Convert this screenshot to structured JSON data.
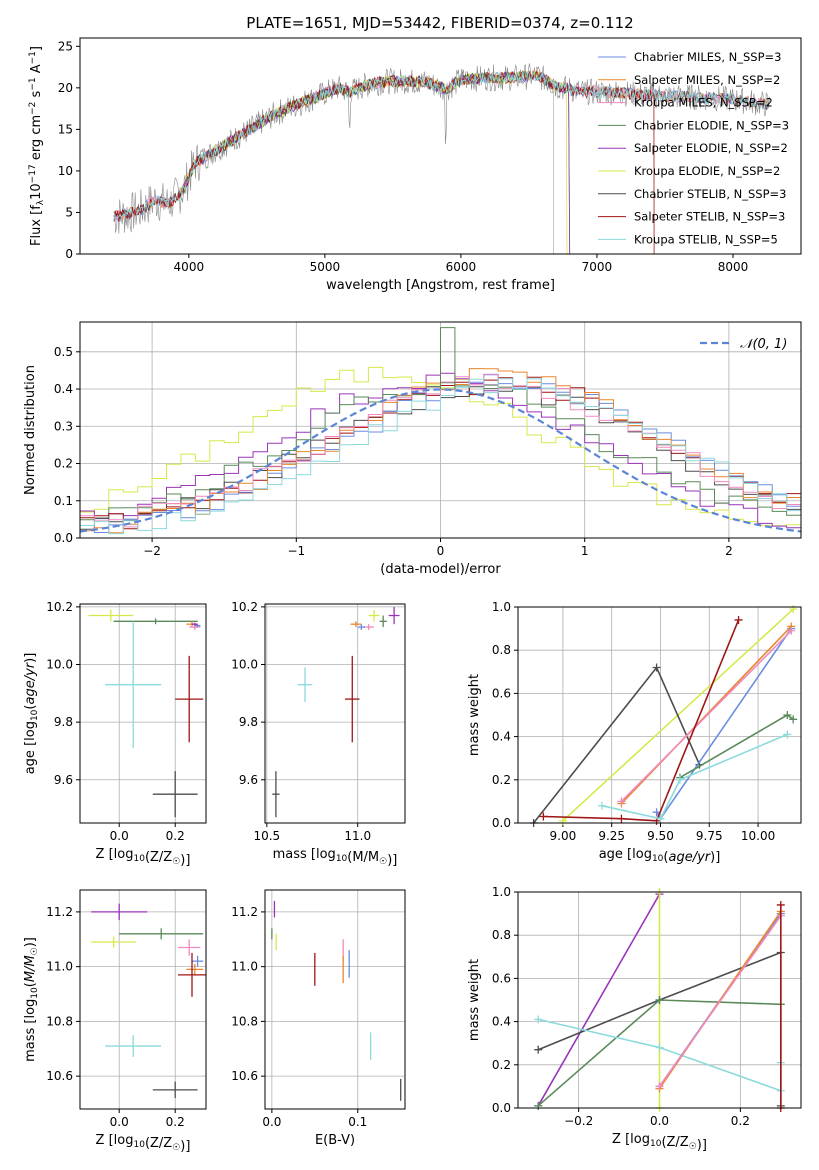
{
  "title": "PLATE=1651, MJD=53442, FIBERID=0374, z=0.112",
  "colors": {
    "Chabrier MILES": "#6b8ce0",
    "Salpeter MILES": "#e8872e",
    "Kroupa MILES": "#f08ac0",
    "Chabrier ELODIE": "#5a8a5a",
    "Salpeter ELODIE": "#9a35b8",
    "Kroupa ELODIE": "#d7e84a",
    "Chabrier STELIB": "#4d4d4d",
    "Salpeter STELIB": "#a01515",
    "Kroupa STELIB": "#8cdadc"
  },
  "chart_data": [
    {
      "id": "spectrum",
      "type": "line",
      "title": "PLATE=1651, MJD=53442, FIBERID=0374, z=0.112",
      "xlabel": "wavelength [Angstrom, rest frame]",
      "ylabel": "Flux [f_λ10^-17 erg cm^-2 s^-1 A^-1]",
      "xlim": [
        3200,
        8500
      ],
      "ylim": [
        0,
        26
      ],
      "xticks": [
        "4000",
        "5000",
        "6000",
        "7000",
        "8000"
      ],
      "yticks": [
        "0",
        "5",
        "10",
        "15",
        "20",
        "25"
      ],
      "grid": false,
      "legend_position": "top-right",
      "legend": [
        "Chabrier MILES, N_SSP=3",
        "Salpeter MILES, N_SSP=2",
        "Kroupa MILES, N_SSP=2",
        "Chabrier ELODIE, N_SSP=3",
        "Salpeter ELODIE, N_SSP=2",
        "Kroupa ELODIE, N_SSP=2",
        "Chabrier STELIB, N_SSP=3",
        "Salpeter STELIB, N_SSP=3",
        "Kroupa STELIB, N_SSP=5"
      ],
      "legend_models": [
        "Chabrier MILES",
        "Salpeter MILES",
        "Kroupa MILES",
        "Chabrier ELODIE",
        "Salpeter ELODIE",
        "Kroupa ELODIE",
        "Chabrier STELIB",
        "Salpeter STELIB",
        "Kroupa STELIB"
      ],
      "data_x": [
        3450,
        3550,
        3650,
        3750,
        3850,
        3950,
        4050,
        4200,
        4350,
        4500,
        4650,
        4800,
        4950,
        5100,
        5180,
        5300,
        5450,
        5600,
        5750,
        5890,
        6000,
        6200,
        6400,
        6563,
        6700,
        6900,
        7100,
        7300,
        7500,
        7700,
        7900,
        8100,
        8250
      ],
      "data_y": [
        4.5,
        4.8,
        5.3,
        6.5,
        6.0,
        7.5,
        11.0,
        12.5,
        14.0,
        15.5,
        17.0,
        18.0,
        19.0,
        20.0,
        19.5,
        20.3,
        20.8,
        20.8,
        20.7,
        19.8,
        21.0,
        21.2,
        21.2,
        21.5,
        20.2,
        19.5,
        19.5,
        19.2,
        19.0,
        18.9,
        18.7,
        18.4,
        18.0
      ]
    },
    {
      "id": "residuals",
      "type": "histogram",
      "xlabel": "(data-model)/error",
      "ylabel": "Normed distribution",
      "xlim": [
        -2.5,
        2.5
      ],
      "ylim": [
        0,
        0.58
      ],
      "xticks": [
        "−2",
        "−1",
        "0",
        "1",
        "2"
      ],
      "yticks": [
        "0.0",
        "0.1",
        "0.2",
        "0.3",
        "0.4",
        "0.5"
      ],
      "grid": true,
      "legend_position": "top-right",
      "legend_label": "𝒩(0, 1)",
      "bin_width": 0.1,
      "bin_start": -2.5,
      "series": [
        {
          "name": "Kroupa ELODIE",
          "shift": -0.35,
          "amp": 0.43,
          "sigma": 0.95
        },
        {
          "name": "Salpeter ELODIE",
          "shift": -0.05,
          "amp": 0.41,
          "sigma": 0.95
        },
        {
          "name": "Chabrier ELODIE",
          "shift": 0.05,
          "amp": 0.4,
          "sigma": 0.95
        },
        {
          "name": "Chabrier STELIB",
          "shift": 0.35,
          "amp": 0.39,
          "sigma": 1.0
        },
        {
          "name": "Salpeter STELIB",
          "shift": 0.45,
          "amp": 0.4,
          "sigma": 1.0
        },
        {
          "name": "Chabrier MILES",
          "shift": 0.45,
          "amp": 0.41,
          "sigma": 0.95
        },
        {
          "name": "Salpeter MILES",
          "shift": 0.4,
          "amp": 0.42,
          "sigma": 0.95
        },
        {
          "name": "Kroupa MILES",
          "shift": 0.35,
          "amp": 0.4,
          "sigma": 1.0
        },
        {
          "name": "Kroupa STELIB",
          "shift": 0.5,
          "amp": 0.4,
          "sigma": 0.95
        }
      ],
      "spike": {
        "x": 0.05,
        "y": 0.565
      }
    },
    {
      "id": "age-vs-Z",
      "type": "errorbar",
      "xlabel": "Z [log10(Z/Z☉)]",
      "ylabel": "age [log10(age/yr)]",
      "xlim": [
        -0.14,
        0.31
      ],
      "ylim": [
        9.45,
        10.21
      ],
      "xticks": [
        "0.0",
        "0.2"
      ],
      "xtick_values": [
        0.0,
        0.2
      ],
      "yticks": [
        "9.6",
        "9.8",
        "10.0",
        "10.2"
      ],
      "ytick_values": [
        9.6,
        9.8,
        10.0,
        10.2
      ],
      "points": [
        {
          "m": "Kroupa ELODIE",
          "x": -0.03,
          "y": 10.17,
          "xe": 0.08,
          "ye": 0.02
        },
        {
          "m": "Chabrier ELODIE",
          "x": 0.13,
          "y": 10.15,
          "xe": 0.15,
          "ye": 0.01
        },
        {
          "m": "Salpeter MILES",
          "x": 0.26,
          "y": 10.14,
          "xe": 0.02,
          "ye": 0.01
        },
        {
          "m": "Kroupa MILES",
          "x": 0.27,
          "y": 10.13,
          "xe": 0.02,
          "ye": 0.01
        },
        {
          "m": "Chabrier MILES",
          "x": 0.28,
          "y": 10.135,
          "xe": 0.01,
          "ye": 0.005
        },
        {
          "m": "Salpeter ELODIE",
          "x": 0.27,
          "y": 10.14,
          "xe": 0.01,
          "ye": 0.005
        },
        {
          "m": "Kroupa STELIB",
          "x": 0.05,
          "y": 9.93,
          "xe": 0.1,
          "ye": 0.22
        },
        {
          "m": "Salpeter STELIB",
          "x": 0.25,
          "y": 9.88,
          "xe": 0.05,
          "ye": 0.15
        },
        {
          "m": "Chabrier STELIB",
          "x": 0.2,
          "y": 9.55,
          "xe": 0.08,
          "ye": 0.08
        }
      ]
    },
    {
      "id": "age-vs-mass",
      "type": "errorbar",
      "xlabel": "mass [log10(M/M☉)]",
      "ylabel": "",
      "xlim": [
        10.49,
        11.26
      ],
      "ylim": [
        9.45,
        10.21
      ],
      "xticks": [
        "10.5",
        "11.0"
      ],
      "xtick_values": [
        10.5,
        11.0
      ],
      "yticks": [
        "9.6",
        "9.8",
        "10.0",
        "10.2"
      ],
      "ytick_values": [
        9.6,
        9.8,
        10.0,
        10.2
      ],
      "points": [
        {
          "m": "Kroupa ELODIE",
          "x": 11.09,
          "y": 10.17,
          "xe": 0.03,
          "ye": 0.02
        },
        {
          "m": "Chabrier ELODIE",
          "x": 11.14,
          "y": 10.15,
          "xe": 0.02,
          "ye": 0.02
        },
        {
          "m": "Salpeter ELODIE",
          "x": 11.2,
          "y": 10.17,
          "xe": 0.03,
          "ye": 0.03
        },
        {
          "m": "Salpeter MILES",
          "x": 10.99,
          "y": 10.14,
          "xe": 0.03,
          "ye": 0.01
        },
        {
          "m": "Kroupa MILES",
          "x": 11.06,
          "y": 10.13,
          "xe": 0.03,
          "ye": 0.01
        },
        {
          "m": "Chabrier MILES",
          "x": 11.02,
          "y": 10.13,
          "xe": 0.02,
          "ye": 0.01
        },
        {
          "m": "Kroupa STELIB",
          "x": 10.71,
          "y": 9.93,
          "xe": 0.04,
          "ye": 0.06
        },
        {
          "m": "Salpeter STELIB",
          "x": 10.97,
          "y": 9.88,
          "xe": 0.04,
          "ye": 0.15
        },
        {
          "m": "Chabrier STELIB",
          "x": 10.55,
          "y": 9.55,
          "xe": 0.02,
          "ye": 0.08
        }
      ]
    },
    {
      "id": "weight-vs-age",
      "type": "line",
      "xlabel": "age [log10(age/yr)]",
      "ylabel": "mass weight",
      "xlim": [
        8.77,
        10.22
      ],
      "ylim": [
        0,
        1.0
      ],
      "xticks": [
        "9.00",
        "9.25",
        "9.50",
        "9.75",
        "10.00"
      ],
      "xtick_values": [
        9.0,
        9.25,
        9.5,
        9.75,
        10.0
      ],
      "yticks": [
        "0.0",
        "0.2",
        "0.4",
        "0.6",
        "0.8",
        "1.0"
      ],
      "ytick_values": [
        0,
        0.2,
        0.4,
        0.6,
        0.8,
        1.0
      ],
      "grid": true,
      "series": [
        {
          "name": "Kroupa ELODIE",
          "x": [
            9.0,
            10.18
          ],
          "y": [
            0.01,
            0.99
          ]
        },
        {
          "name": "Chabrier STELIB",
          "x": [
            8.85,
            9.48,
            9.7
          ],
          "y": [
            0.0,
            0.72,
            0.27
          ]
        },
        {
          "name": "Chabrier MILES",
          "x": [
            9.48,
            9.5,
            10.17
          ],
          "y": [
            0.05,
            0.02,
            0.9
          ]
        },
        {
          "name": "Salpeter MILES",
          "x": [
            9.3,
            10.17
          ],
          "y": [
            0.09,
            0.91
          ]
        },
        {
          "name": "Kroupa MILES",
          "x": [
            9.3,
            10.17
          ],
          "y": [
            0.1,
            0.89
          ]
        },
        {
          "name": "Salpeter STELIB",
          "x": [
            8.9,
            9.3,
            9.48,
            9.9
          ],
          "y": [
            0.03,
            0.02,
            0.01,
            0.94
          ]
        },
        {
          "name": "Chabrier ELODIE",
          "x": [
            9.6,
            10.15,
            10.18
          ],
          "y": [
            0.21,
            0.5,
            0.48
          ]
        },
        {
          "name": "Kroupa STELIB",
          "x": [
            9.2,
            9.5,
            9.6,
            10.15
          ],
          "y": [
            0.08,
            0.02,
            0.2,
            0.41
          ]
        }
      ]
    },
    {
      "id": "mass-vs-Z",
      "type": "errorbar",
      "xlabel": "Z [log10(Z/Z☉)]",
      "ylabel": "mass [log10(M/M☉)]",
      "xlim": [
        -0.14,
        0.31
      ],
      "ylim": [
        10.48,
        11.28
      ],
      "xticks": [
        "0.0",
        "0.2"
      ],
      "xtick_values": [
        0.0,
        0.2
      ],
      "yticks": [
        "10.6",
        "10.8",
        "11.0",
        "11.2"
      ],
      "ytick_values": [
        10.6,
        10.8,
        11.0,
        11.2
      ],
      "points": [
        {
          "m": "Salpeter ELODIE",
          "x": 0.0,
          "y": 11.2,
          "xe": 0.1,
          "ye": 0.03
        },
        {
          "m": "Chabrier ELODIE",
          "x": 0.15,
          "y": 11.12,
          "xe": 0.15,
          "ye": 0.02
        },
        {
          "m": "Kroupa ELODIE",
          "x": -0.02,
          "y": 11.09,
          "xe": 0.08,
          "ye": 0.02
        },
        {
          "m": "Kroupa MILES",
          "x": 0.25,
          "y": 11.07,
          "xe": 0.04,
          "ye": 0.03
        },
        {
          "m": "Chabrier MILES",
          "x": 0.28,
          "y": 11.02,
          "xe": 0.02,
          "ye": 0.02
        },
        {
          "m": "Salpeter MILES",
          "x": 0.27,
          "y": 10.99,
          "xe": 0.03,
          "ye": 0.02
        },
        {
          "m": "Salpeter STELIB",
          "x": 0.26,
          "y": 10.97,
          "xe": 0.05,
          "ye": 0.08
        },
        {
          "m": "Kroupa STELIB",
          "x": 0.05,
          "y": 10.71,
          "xe": 0.1,
          "ye": 0.04
        },
        {
          "m": "Chabrier STELIB",
          "x": 0.2,
          "y": 10.55,
          "xe": 0.08,
          "ye": 0.03
        }
      ]
    },
    {
      "id": "mass-vs-EBV",
      "type": "errorbar",
      "xlabel": "E(B-V)",
      "ylabel": "",
      "xlim": [
        -0.008,
        0.155
      ],
      "ylim": [
        10.48,
        11.28
      ],
      "xticks": [
        "0.0",
        "0.1"
      ],
      "xtick_values": [
        0.0,
        0.1
      ],
      "yticks": [
        "10.6",
        "10.8",
        "11.0",
        "11.2"
      ],
      "ytick_values": [
        10.6,
        10.8,
        11.0,
        11.2
      ],
      "points": [
        {
          "m": "Salpeter ELODIE",
          "x": 0.003,
          "y": 11.21,
          "xe": 0,
          "ye": 0.03
        },
        {
          "m": "Chabrier ELODIE",
          "x": 0.0,
          "y": 11.12,
          "xe": 0,
          "ye": 0.02
        },
        {
          "m": "Kroupa ELODIE",
          "x": 0.005,
          "y": 11.09,
          "xe": 0,
          "ye": 0.03
        },
        {
          "m": "Kroupa MILES",
          "x": 0.083,
          "y": 11.06,
          "xe": 0,
          "ye": 0.04
        },
        {
          "m": "Chabrier MILES",
          "x": 0.09,
          "y": 11.01,
          "xe": 0,
          "ye": 0.05
        },
        {
          "m": "Salpeter MILES",
          "x": 0.083,
          "y": 10.99,
          "xe": 0,
          "ye": 0.05
        },
        {
          "m": "Salpeter STELIB",
          "x": 0.05,
          "y": 10.99,
          "xe": 0,
          "ye": 0.06
        },
        {
          "m": "Kroupa STELIB",
          "x": 0.115,
          "y": 10.71,
          "xe": 0,
          "ye": 0.05
        },
        {
          "m": "Chabrier STELIB",
          "x": 0.15,
          "y": 10.55,
          "xe": 0,
          "ye": 0.04
        }
      ]
    },
    {
      "id": "weight-vs-Z",
      "type": "line",
      "xlabel": "Z [log10(Z/Z☉)]",
      "ylabel": "mass weight",
      "xlim": [
        -0.35,
        0.35
      ],
      "ylim": [
        0,
        1.0
      ],
      "xticks": [
        "−0.2",
        "0.0",
        "0.2"
      ],
      "xtick_values": [
        -0.2,
        0.0,
        0.2
      ],
      "yticks": [
        "0.0",
        "0.2",
        "0.4",
        "0.6",
        "0.8",
        "1.0"
      ],
      "ytick_values": [
        0,
        0.2,
        0.4,
        0.6,
        0.8,
        1.0
      ],
      "grid": true,
      "series": [
        {
          "name": "Salpeter ELODIE",
          "x": [
            -0.3,
            0.0
          ],
          "y": [
            0.01,
            0.99
          ]
        },
        {
          "name": "Kroupa ELODIE",
          "x": [
            0.0,
            0.0
          ],
          "y": [
            0.0,
            1.0
          ]
        },
        {
          "name": "Chabrier STELIB",
          "x": [
            -0.3,
            0.0,
            0.3,
            0.3
          ],
          "y": [
            0.27,
            0.5,
            0.72,
            0.01
          ]
        },
        {
          "name": "Chabrier ELODIE",
          "x": [
            -0.3,
            0.0,
            0.3
          ],
          "y": [
            0.01,
            0.5,
            0.48
          ]
        },
        {
          "name": "Kroupa STELIB",
          "x": [
            -0.3,
            0.0,
            0.3,
            0.3
          ],
          "y": [
            0.41,
            0.28,
            0.08,
            0.21
          ]
        },
        {
          "name": "Chabrier MILES",
          "x": [
            0.0,
            0.3
          ],
          "y": [
            0.1,
            0.9
          ]
        },
        {
          "name": "Salpeter MILES",
          "x": [
            0.0,
            0.3
          ],
          "y": [
            0.09,
            0.91
          ]
        },
        {
          "name": "Kroupa MILES",
          "x": [
            0.0,
            0.3
          ],
          "y": [
            0.1,
            0.89
          ]
        },
        {
          "name": "Salpeter STELIB",
          "x": [
            0.3,
            0.3
          ],
          "y": [
            0.0,
            0.94
          ]
        }
      ]
    }
  ]
}
